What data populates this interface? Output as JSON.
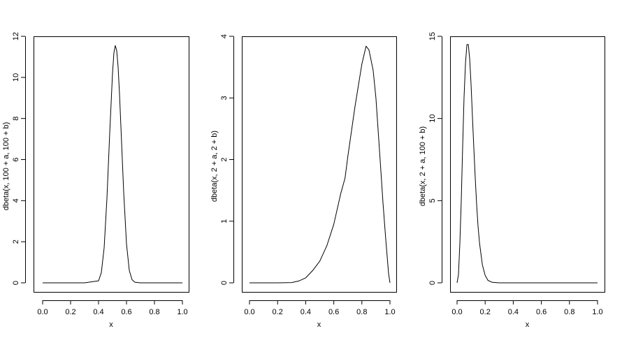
{
  "figure": {
    "background": "#ffffff",
    "line_color": "#000000"
  },
  "chart_data": [
    {
      "type": "line",
      "xlabel": "x",
      "ylabel": "dbeta(x, 100 + a, 100 + b)",
      "xlim": [
        0.0,
        1.0
      ],
      "ylim": [
        0,
        12
      ],
      "x_ticks": [
        "0.0",
        "0.2",
        "0.4",
        "0.6",
        "0.8",
        "1.0"
      ],
      "y_ticks": [
        "0",
        "2",
        "4",
        "6",
        "8",
        "10",
        "12"
      ],
      "series": [
        {
          "x": [
            0.0,
            0.1,
            0.2,
            0.3,
            0.4,
            0.42,
            0.44,
            0.46,
            0.48,
            0.5,
            0.51,
            0.52,
            0.53,
            0.54,
            0.55,
            0.56,
            0.58,
            0.6,
            0.62,
            0.64,
            0.66,
            0.7,
            0.8,
            0.9,
            1.0
          ],
          "y": [
            0,
            0,
            0,
            0,
            0.1,
            0.5,
            1.7,
            4.1,
            7.3,
            10.2,
            11.2,
            11.55,
            11.3,
            10.5,
            9.2,
            7.6,
            4.4,
            1.9,
            0.6,
            0.15,
            0.03,
            0,
            0,
            0,
            0
          ]
        }
      ]
    },
    {
      "type": "line",
      "xlabel": "x",
      "ylabel": "dbeta(x, 2 + a, 2 + b)",
      "xlim": [
        0.0,
        1.0
      ],
      "ylim": [
        0,
        4
      ],
      "x_ticks": [
        "0.0",
        "0.2",
        "0.4",
        "0.6",
        "0.8",
        "1.0"
      ],
      "y_ticks": [
        "0",
        "1",
        "2",
        "3",
        "4"
      ],
      "series": [
        {
          "x": [
            0.0,
            0.1,
            0.2,
            0.3,
            0.35,
            0.4,
            0.45,
            0.5,
            0.55,
            0.6,
            0.65,
            0.68,
            0.7,
            0.75,
            0.8,
            0.83,
            0.85,
            0.88,
            0.9,
            0.93,
            0.95,
            0.97,
            0.99,
            1.0
          ],
          "y": [
            0,
            0,
            0,
            0.005,
            0.03,
            0.08,
            0.2,
            0.35,
            0.6,
            0.95,
            1.45,
            1.7,
            2.05,
            2.85,
            3.55,
            3.84,
            3.78,
            3.45,
            3.0,
            2.0,
            1.3,
            0.7,
            0.15,
            0
          ]
        }
      ]
    },
    {
      "type": "line",
      "xlabel": "x",
      "ylabel": "dbeta(x, 2 + a, 100 + b)",
      "xlim": [
        0.0,
        1.0
      ],
      "ylim": [
        0,
        15
      ],
      "x_ticks": [
        "0.0",
        "0.2",
        "0.4",
        "0.6",
        "0.8",
        "1.0"
      ],
      "y_ticks": [
        "0",
        "5",
        "10",
        "15"
      ],
      "series": [
        {
          "x": [
            0.0,
            0.01,
            0.02,
            0.03,
            0.04,
            0.05,
            0.06,
            0.07,
            0.08,
            0.09,
            0.1,
            0.11,
            0.12,
            0.13,
            0.14,
            0.15,
            0.16,
            0.18,
            0.2,
            0.22,
            0.25,
            0.3,
            0.4,
            0.6,
            0.8,
            1.0
          ],
          "y": [
            0,
            0.5,
            2.4,
            5.0,
            8.3,
            11.3,
            13.4,
            14.5,
            14.5,
            13.6,
            12.0,
            10.0,
            8.1,
            6.3,
            4.7,
            3.4,
            2.4,
            1.1,
            0.45,
            0.15,
            0.03,
            0,
            0,
            0,
            0,
            0
          ]
        }
      ]
    }
  ]
}
